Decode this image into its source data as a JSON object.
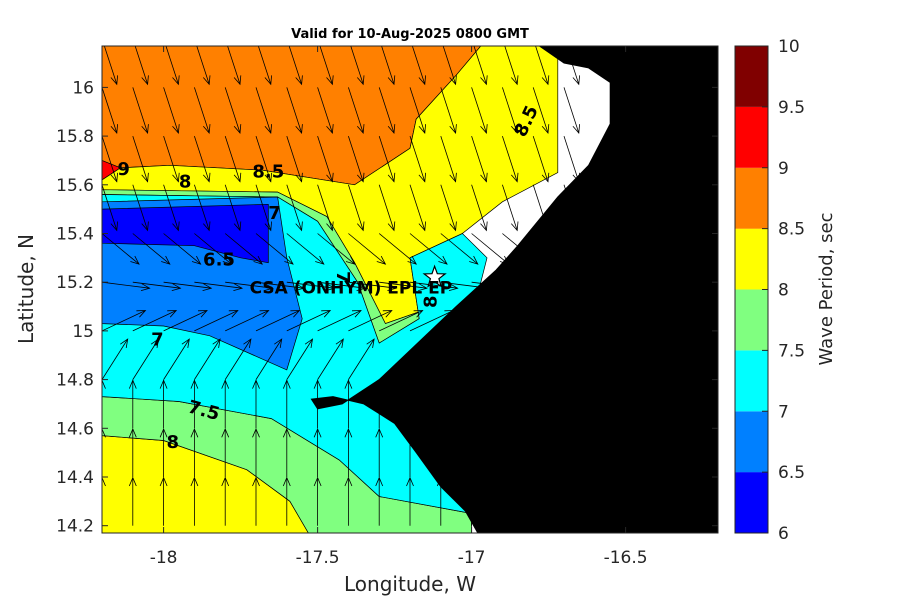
{
  "chart_data": {
    "type": "heatmap",
    "title": "Valid for 10-Aug-2025 0800 GMT",
    "xlabel": "Longitude, W",
    "ylabel": "Latitude, N",
    "colorbar_label": "Wave Period, sec",
    "xlim": [
      -18.2,
      -16.2
    ],
    "ylim": [
      14.17,
      16.17
    ],
    "x_ticks": [
      -18,
      -17.5,
      -17,
      -16.5
    ],
    "x_tick_labels": [
      "-18",
      "-17.5",
      "-17",
      "-16.5"
    ],
    "y_ticks": [
      14.2,
      14.4,
      14.6,
      14.8,
      15,
      15.2,
      15.4,
      15.6,
      15.8,
      16
    ],
    "y_tick_labels": [
      "14.2",
      "14.4",
      "14.6",
      "14.8",
      "15",
      "15.2",
      "15.4",
      "15.6",
      "15.8",
      "16"
    ],
    "colorbar": {
      "levels": [
        6,
        6.5,
        7,
        7.5,
        8,
        8.5,
        9,
        9.5,
        10
      ],
      "level_labels": [
        "6",
        "6.5",
        "7",
        "7.5",
        "8",
        "8.5",
        "9",
        "9.5",
        "10"
      ],
      "colors": [
        "#0000ff",
        "#0080ff",
        "#00ffff",
        "#80ff80",
        "#ffff00",
        "#ff8000",
        "#ff0000",
        "#800000"
      ]
    },
    "regions": [
      {
        "value": 9.25,
        "color": "#ff0000",
        "polygon": [
          [
            -18.2,
            15.7
          ],
          [
            -18.14,
            15.67
          ],
          [
            -18.2,
            15.62
          ]
        ]
      },
      {
        "value": 8.75,
        "color": "#ff8000",
        "polygon": [
          [
            -18.2,
            16.17
          ],
          [
            -16.97,
            16.17
          ],
          [
            -17.05,
            16.05
          ],
          [
            -17.18,
            15.87
          ],
          [
            -17.2,
            15.75
          ],
          [
            -17.38,
            15.6
          ],
          [
            -17.68,
            15.66
          ],
          [
            -17.98,
            15.68
          ],
          [
            -18.14,
            15.67
          ],
          [
            -18.2,
            15.7
          ]
        ]
      },
      {
        "value": 8.25,
        "color": "#ffff00",
        "polygon": [
          [
            -18.2,
            15.62
          ],
          [
            -18.14,
            15.67
          ],
          [
            -17.98,
            15.68
          ],
          [
            -17.68,
            15.66
          ],
          [
            -17.38,
            15.6
          ],
          [
            -17.2,
            15.75
          ],
          [
            -17.18,
            15.87
          ],
          [
            -17.05,
            16.05
          ],
          [
            -16.97,
            16.17
          ],
          [
            -16.72,
            16.17
          ],
          [
            -16.72,
            15.65
          ],
          [
            -16.9,
            15.53
          ],
          [
            -17.03,
            15.4
          ],
          [
            -17.08,
            15.3
          ],
          [
            -17.12,
            15.1
          ],
          [
            -17.28,
            15.03
          ],
          [
            -17.38,
            15.28
          ],
          [
            -17.47,
            15.47
          ],
          [
            -17.63,
            15.57
          ],
          [
            -18.2,
            15.58
          ]
        ]
      },
      {
        "value": 7.75,
        "color": "#80ff80",
        "polygon": [
          [
            -18.2,
            15.58
          ],
          [
            -17.63,
            15.57
          ],
          [
            -17.47,
            15.47
          ],
          [
            -17.38,
            15.28
          ],
          [
            -17.28,
            15.03
          ],
          [
            -17.12,
            15.1
          ],
          [
            -17.08,
            15.3
          ],
          [
            -17.03,
            15.4
          ],
          [
            -17.2,
            15.3
          ],
          [
            -17.17,
            15.05
          ],
          [
            -17.3,
            14.95
          ],
          [
            -17.37,
            15.2
          ],
          [
            -17.5,
            15.45
          ],
          [
            -17.63,
            15.55
          ],
          [
            -18.2,
            15.56
          ]
        ]
      },
      {
        "value": 8.25,
        "color": "#ffff00",
        "polygon": [
          [
            -18.2,
            14.57
          ],
          [
            -18.0,
            14.55
          ],
          [
            -17.73,
            14.43
          ],
          [
            -17.59,
            14.3
          ],
          [
            -17.53,
            14.17
          ],
          [
            -18.2,
            14.17
          ]
        ]
      },
      {
        "value": 7.75,
        "color": "#80ff80",
        "polygon": [
          [
            -18.2,
            14.73
          ],
          [
            -17.95,
            14.71
          ],
          [
            -17.65,
            14.64
          ],
          [
            -17.43,
            14.47
          ],
          [
            -17.3,
            14.32
          ],
          [
            -17.0,
            14.25
          ],
          [
            -17.0,
            14.17
          ],
          [
            -17.53,
            14.17
          ],
          [
            -17.59,
            14.3
          ],
          [
            -17.73,
            14.43
          ],
          [
            -18.0,
            14.55
          ],
          [
            -18.2,
            14.57
          ]
        ]
      },
      {
        "value": 7.25,
        "color": "#00ffff",
        "polygon": [
          [
            -18.2,
            15.56
          ],
          [
            -17.63,
            15.55
          ],
          [
            -17.5,
            15.45
          ],
          [
            -17.37,
            15.2
          ],
          [
            -17.3,
            14.95
          ],
          [
            -17.17,
            15.05
          ],
          [
            -17.2,
            15.3
          ],
          [
            -17.03,
            15.4
          ],
          [
            -16.95,
            15.3
          ],
          [
            -17.0,
            15.05
          ],
          [
            -17.2,
            14.85
          ],
          [
            -17.35,
            14.75
          ],
          [
            -17.25,
            14.65
          ],
          [
            -17.1,
            14.45
          ],
          [
            -16.98,
            14.38
          ],
          [
            -17.0,
            14.25
          ],
          [
            -17.3,
            14.32
          ],
          [
            -17.43,
            14.47
          ],
          [
            -17.65,
            14.64
          ],
          [
            -17.95,
            14.71
          ],
          [
            -18.2,
            14.73
          ]
        ]
      },
      {
        "value": 6.75,
        "color": "#0080ff",
        "polygon": [
          [
            -18.2,
            15.53
          ],
          [
            -17.63,
            15.55
          ],
          [
            -17.6,
            15.3
          ],
          [
            -17.55,
            15.05
          ],
          [
            -17.6,
            14.84
          ],
          [
            -17.85,
            14.98
          ],
          [
            -18.0,
            15.02
          ],
          [
            -18.2,
            15.03
          ]
        ]
      },
      {
        "value": 6.25,
        "color": "#0000ff",
        "polygon": [
          [
            -18.2,
            15.5
          ],
          [
            -17.66,
            15.52
          ],
          [
            -17.66,
            15.28
          ],
          [
            -17.75,
            15.3
          ],
          [
            -17.9,
            15.35
          ],
          [
            -18.2,
            15.36
          ]
        ]
      }
    ],
    "land": {
      "color": "#000000",
      "polygon": [
        [
          -16.78,
          16.17
        ],
        [
          -16.2,
          16.17
        ],
        [
          -16.2,
          14.17
        ],
        [
          -16.98,
          14.17
        ],
        [
          -17.02,
          14.26
        ],
        [
          -17.1,
          14.36
        ],
        [
          -17.18,
          14.5
        ],
        [
          -17.25,
          14.62
        ],
        [
          -17.35,
          14.7
        ],
        [
          -17.45,
          14.73
        ],
        [
          -17.52,
          14.72
        ],
        [
          -17.5,
          14.68
        ],
        [
          -17.42,
          14.7
        ],
        [
          -17.3,
          14.8
        ],
        [
          -17.15,
          14.98
        ],
        [
          -17.05,
          15.1
        ],
        [
          -16.92,
          15.25
        ],
        [
          -16.85,
          15.35
        ],
        [
          -16.72,
          15.55
        ],
        [
          -16.62,
          15.68
        ],
        [
          -16.55,
          15.85
        ],
        [
          -16.55,
          16.02
        ],
        [
          -16.62,
          16.08
        ],
        [
          -16.7,
          16.1
        ]
      ]
    },
    "contour_labels": [
      {
        "text": "9",
        "x": -18.13,
        "y": 15.66,
        "rotate": 0
      },
      {
        "text": "8",
        "x": -17.93,
        "y": 15.61,
        "rotate": 0
      },
      {
        "text": "8.5",
        "x": -17.66,
        "y": 15.65,
        "rotate": 0
      },
      {
        "text": "8.5",
        "x": -16.82,
        "y": 15.86,
        "rotate": -65
      },
      {
        "text": "7",
        "x": -17.64,
        "y": 15.48,
        "rotate": 0
      },
      {
        "text": "6.5",
        "x": -17.82,
        "y": 15.29,
        "rotate": 0
      },
      {
        "text": "7",
        "x": -17.42,
        "y": 15.22,
        "rotate": 90
      },
      {
        "text": "8",
        "x": -17.13,
        "y": 15.12,
        "rotate": -90
      },
      {
        "text": "7",
        "x": -18.02,
        "y": 14.96,
        "rotate": 0
      },
      {
        "text": "7.5",
        "x": -17.87,
        "y": 14.67,
        "rotate": 15
      },
      {
        "text": "8",
        "x": -17.97,
        "y": 14.54,
        "rotate": 0
      }
    ],
    "site": {
      "name": "CSA (ONHYM) EPL EP",
      "lon": -17.12,
      "lat": 15.22,
      "marker": "star"
    },
    "vector_field": {
      "x": [
        -18.2,
        -18.1,
        -18.0,
        -17.9,
        -17.8,
        -17.7,
        -17.6,
        -17.5,
        -17.4,
        -17.3,
        -17.2,
        -17.1,
        -17.0,
        -16.9,
        -16.8,
        -16.7
      ],
      "y": [
        14.2,
        14.4,
        14.6,
        14.8,
        15.0,
        15.2,
        15.4,
        15.6,
        15.8,
        16.0,
        16.2
      ],
      "direction": "waves heading toward SSE in north, toward N in south"
    }
  }
}
